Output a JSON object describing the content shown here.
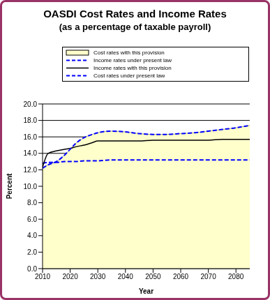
{
  "chart_data": {
    "type": "line",
    "title": "OASDI Cost Rates and Income Rates",
    "subtitle": "(as a percentage of taxable payroll)",
    "x_label": "Year",
    "y_label": "Percent",
    "x": [
      2010,
      2012,
      2015,
      2018,
      2020,
      2022,
      2025,
      2028,
      2030,
      2035,
      2040,
      2045,
      2050,
      2055,
      2060,
      2065,
      2070,
      2075,
      2080,
      2085
    ],
    "series": [
      {
        "name": "Cost rates with this provision",
        "type": "area",
        "color": "#ffffcc",
        "values": [
          12.2,
          12.6,
          13.0,
          13.8,
          14.5,
          15.2,
          15.9,
          16.3,
          16.5,
          16.7,
          16.6,
          16.4,
          16.3,
          16.3,
          16.4,
          16.5,
          16.7,
          16.9,
          17.1,
          17.4
        ]
      },
      {
        "name": "Income rates under present law",
        "type": "line",
        "color": "#0000ff",
        "line_style": "dashed",
        "values": [
          12.8,
          12.9,
          12.9,
          13.0,
          13.0,
          13.0,
          13.1,
          13.1,
          13.1,
          13.2,
          13.2,
          13.2,
          13.2,
          13.2,
          13.2,
          13.2,
          13.2,
          13.2,
          13.2,
          13.2
        ]
      },
      {
        "name": "Income rates with this provision",
        "type": "line",
        "color": "#000000",
        "line_style": "solid",
        "values": [
          12.3,
          14.0,
          14.3,
          14.5,
          14.6,
          14.8,
          15.0,
          15.3,
          15.5,
          15.5,
          15.5,
          15.5,
          15.6,
          15.6,
          15.6,
          15.6,
          15.6,
          15.7,
          15.7,
          15.7
        ]
      },
      {
        "name": "Cost rates under present law",
        "type": "line",
        "color": "#0000ff",
        "line_style": "dashed",
        "values": [
          12.2,
          12.6,
          13.0,
          13.8,
          14.5,
          15.2,
          15.9,
          16.3,
          16.5,
          16.7,
          16.6,
          16.4,
          16.3,
          16.3,
          16.4,
          16.5,
          16.7,
          16.9,
          17.1,
          17.4
        ]
      }
    ],
    "xlim": [
      2010,
      2085
    ],
    "xticks": [
      2010,
      2020,
      2030,
      2040,
      2050,
      2060,
      2070,
      2080
    ],
    "ylim": [
      0,
      20
    ],
    "yticks": [
      {
        "value": 0,
        "label": "0.0"
      },
      {
        "value": 2,
        "label": "2.0"
      },
      {
        "value": 4,
        "label": "4.0"
      },
      {
        "value": 6,
        "label": "6.0"
      },
      {
        "value": 8,
        "label": "8.0"
      },
      {
        "value": 10,
        "label": "10.0"
      },
      {
        "value": 12,
        "label": "12.0"
      },
      {
        "value": 14,
        "label": "14.0"
      },
      {
        "value": 16,
        "label": "16.0"
      },
      {
        "value": 18,
        "label": "18.0"
      },
      {
        "value": 20,
        "label": "20.0"
      }
    ],
    "grid": true,
    "legend": "top"
  }
}
